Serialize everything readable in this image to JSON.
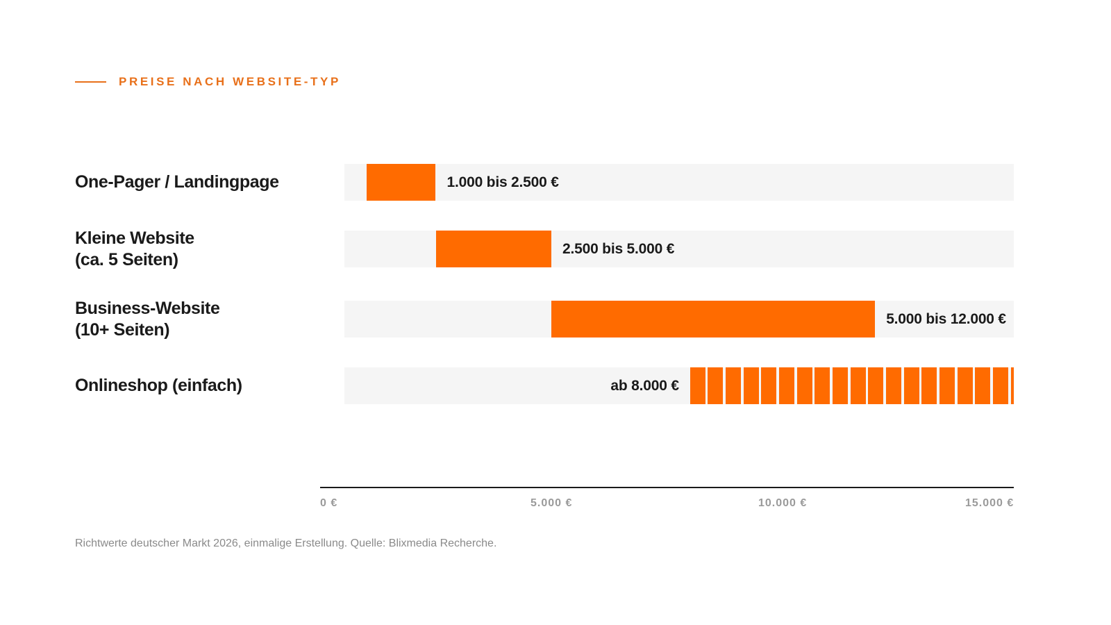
{
  "eyebrow": "PREISE NACH WEBSITE-TYP",
  "note": "Richtwerte deutscher Markt 2026, einmalige Erstellung. Quelle: Blixmedia Recherche.",
  "colors": {
    "accent": "#ff6b00",
    "track": "#f5f5f5",
    "text": "#1a1a1a",
    "muted": "#9a9a9a"
  },
  "chart_data": {
    "type": "bar",
    "orientation": "horizontal-range",
    "xlim": [
      0,
      15000
    ],
    "ticks": [
      {
        "value": 0,
        "label": "0 €"
      },
      {
        "value": 5000,
        "label": "5.000 €"
      },
      {
        "value": 10000,
        "label": "10.000 €"
      },
      {
        "value": 15000,
        "label": "15.000 €"
      }
    ],
    "categories": [
      {
        "lines": [
          "One-Pager / Landingpage"
        ],
        "min": 1000,
        "max": 2500,
        "open_ended": false,
        "label": "1.000 bis 2.500 €"
      },
      {
        "lines": [
          "Kleine Website",
          "(ca. 5 Seiten)"
        ],
        "min": 2500,
        "max": 5000,
        "open_ended": false,
        "label": "2.500 bis 5.000 €"
      },
      {
        "lines": [
          "Business-Website",
          "(10+ Seiten)"
        ],
        "min": 5000,
        "max": 12000,
        "open_ended": false,
        "label": "5.000 bis 12.000 €"
      },
      {
        "lines": [
          "Onlineshop (einfach)"
        ],
        "min": 8000,
        "max": 15000,
        "open_ended": true,
        "label": "ab 8.000 €"
      }
    ]
  }
}
